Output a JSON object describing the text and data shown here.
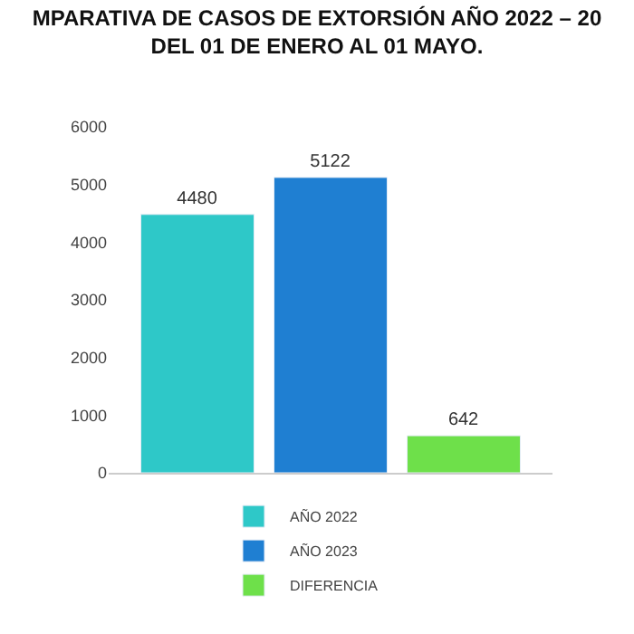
{
  "chart_data": {
    "type": "bar",
    "title": "MPARATIVA DE CASOS DE EXTORSIÓN AÑO 2022 – 20",
    "subtitle": "DEL 01 DE ENERO AL 01 MAYO.",
    "categories": [
      null
    ],
    "series": [
      {
        "name": "AÑO 2022",
        "color": "#2ec8c8",
        "values": [
          4480
        ]
      },
      {
        "name": "AÑO 2023",
        "color": "#1f7fd2",
        "values": [
          5122
        ]
      },
      {
        "name": "DIFERENCIA",
        "color": "#6ee04a",
        "values": [
          642
        ]
      }
    ],
    "ylim": [
      0,
      6000
    ],
    "yticks": [
      0,
      1000,
      2000,
      3000,
      4000,
      5000,
      6000
    ],
    "data_labels": true,
    "legend": "bottom"
  }
}
